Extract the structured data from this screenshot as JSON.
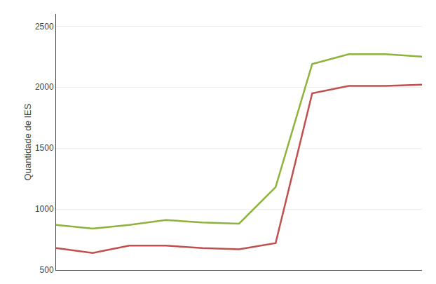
{
  "chart_data": {
    "type": "line",
    "ylabel": "Quantidade de IES",
    "x": [
      1,
      2,
      3,
      4,
      5,
      6,
      7,
      8,
      9,
      10,
      11
    ],
    "series": [
      {
        "color": "#8DB33A",
        "values": [
          870,
          840,
          870,
          910,
          890,
          880,
          1180,
          2190,
          2270,
          2270,
          2250
        ]
      },
      {
        "color": "#C0504D",
        "values": [
          680,
          640,
          700,
          700,
          680,
          670,
          720,
          1950,
          2010,
          2010,
          2020
        ]
      }
    ],
    "xlim": [
      1,
      11
    ],
    "xticks": [],
    "ylim": [
      500,
      2600
    ],
    "yticks": [
      500,
      1000,
      1500,
      2000,
      2500
    ],
    "grid": true,
    "tick_labels": "y"
  }
}
